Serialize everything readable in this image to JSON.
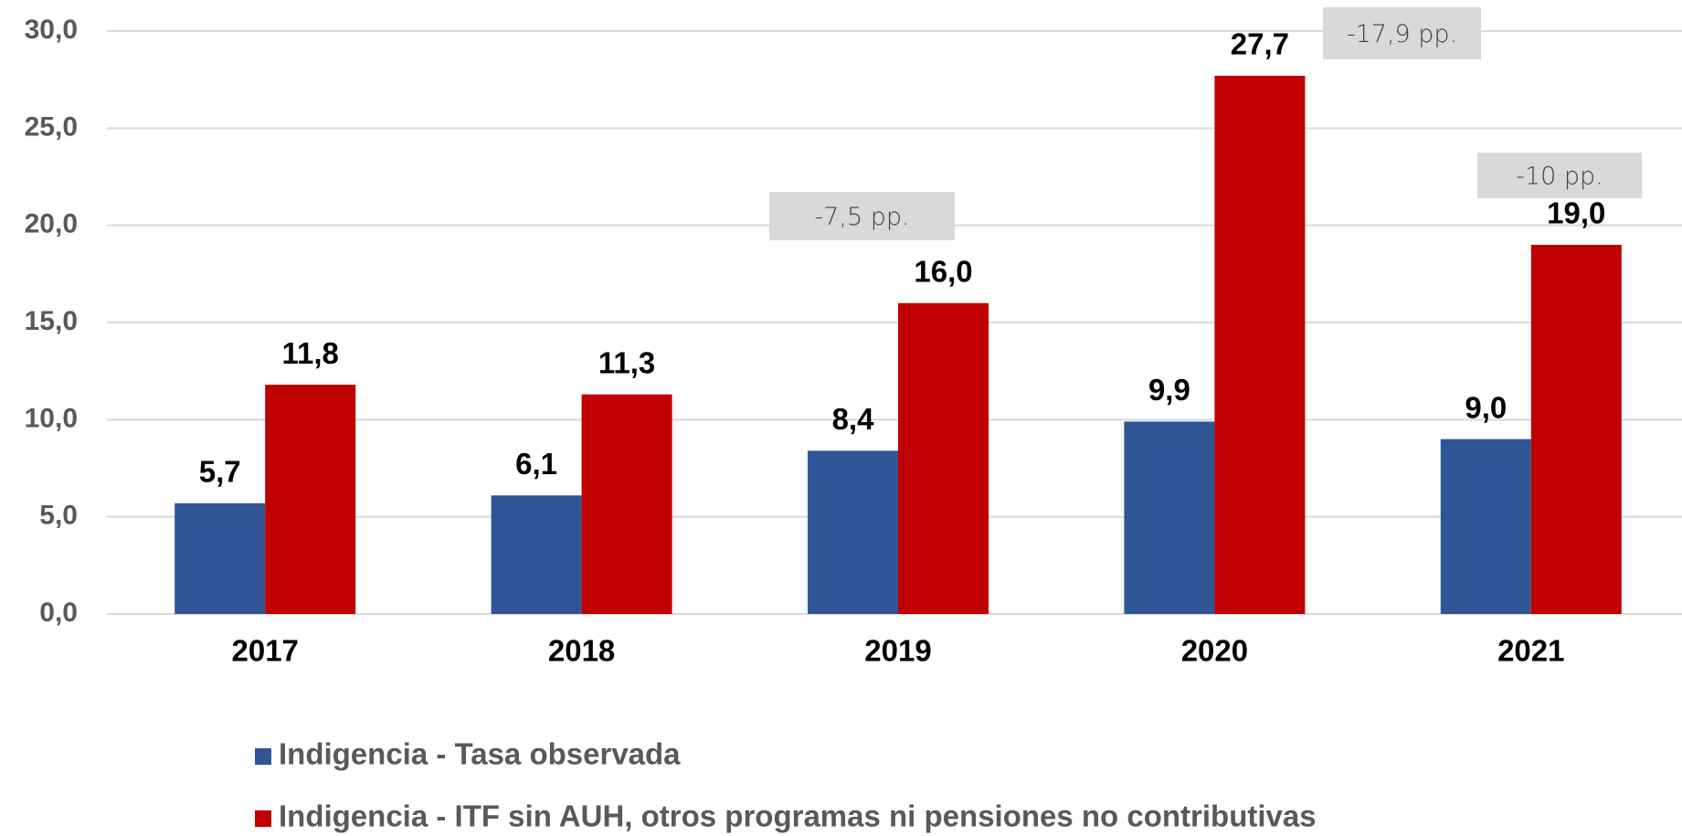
{
  "chart_data": {
    "type": "bar",
    "categories": [
      "2017",
      "2018",
      "2019",
      "2020",
      "2021"
    ],
    "series": [
      {
        "name": "Indigencia - Tasa observada",
        "color": "#2f5597",
        "values": [
          5.7,
          6.1,
          8.4,
          9.9,
          9.0
        ],
        "value_labels": [
          "5,7",
          "6,1",
          "8,4",
          "9,9",
          "9,0"
        ]
      },
      {
        "name": "Indigencia - ITF sin AUH, otros programas ni pensiones no contributivas",
        "color": "#c00000",
        "values": [
          11.8,
          11.3,
          16.0,
          27.7,
          19.0
        ],
        "value_labels": [
          "11,8",
          "11,3",
          "16,0",
          "27,7",
          "19,0"
        ]
      }
    ],
    "ylim": [
      0,
      30
    ],
    "yticks": [
      {
        "value": 0,
        "label": "0,0"
      },
      {
        "value": 5,
        "label": "5,0"
      },
      {
        "value": 10,
        "label": "10,0"
      },
      {
        "value": 15,
        "label": "15,0"
      },
      {
        "value": 20,
        "label": "20,0"
      },
      {
        "value": 25,
        "label": "25,0"
      },
      {
        "value": 30,
        "label": "30,0"
      }
    ],
    "grid": true,
    "annotations": [
      "-7,5 pp.",
      "-17,9 pp.",
      "-10 pp."
    ]
  }
}
